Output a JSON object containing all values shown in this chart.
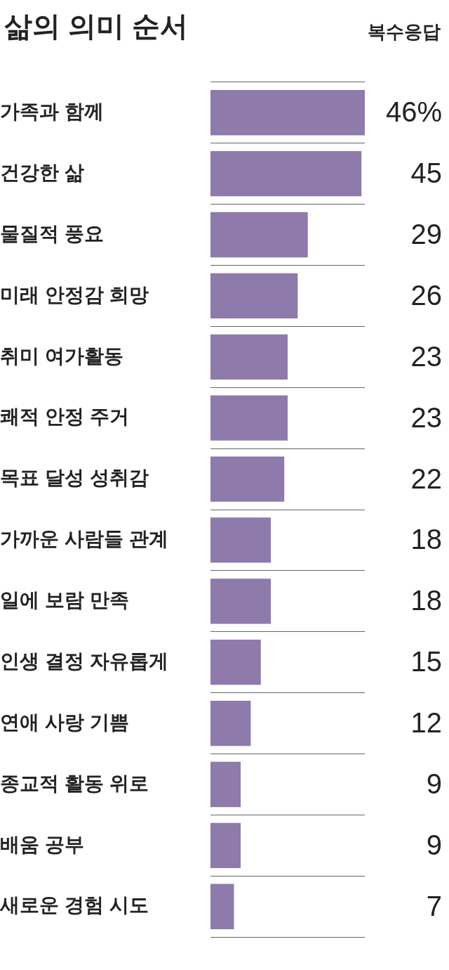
{
  "chart_data": {
    "type": "bar",
    "orientation": "horizontal",
    "title": "삶의 의미 순서",
    "subtitle": "복수응답",
    "categories": [
      "가족과 함께",
      "건강한 삶",
      "물질적 풍요",
      "미래 안정감 희망",
      "취미 여가활동",
      "쾌적 안정 주거",
      "목표 달성 성취감",
      "가까운 사람들 관계",
      "일에 보람 만족",
      "인생 결정 자유롭게",
      "연애 사랑 기쁨",
      "종교적 활동 위로",
      "배움 공부",
      "새로운 경험 시도"
    ],
    "values": [
      46,
      45,
      29,
      26,
      23,
      23,
      22,
      18,
      18,
      15,
      12,
      9,
      9,
      7
    ],
    "value_labels": [
      "46%",
      "45",
      "29",
      "26",
      "23",
      "23",
      "22",
      "18",
      "18",
      "15",
      "12",
      "9",
      "9",
      "7"
    ],
    "color": "#8e7aab",
    "xlim": [
      0,
      46
    ],
    "grid": "y",
    "tick_labels": "y",
    "legend": false
  }
}
